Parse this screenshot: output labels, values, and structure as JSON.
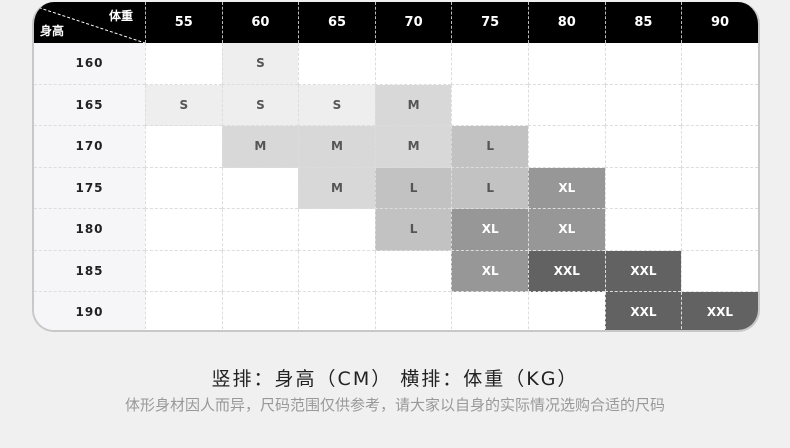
{
  "table": {
    "corner_weight": "体重",
    "corner_height": "身高",
    "weights": [
      "55",
      "60",
      "65",
      "70",
      "75",
      "80",
      "85",
      "90"
    ],
    "rows": [
      {
        "height": "160",
        "sizes": [
          "",
          "S",
          "",
          "",
          "",
          "",
          "",
          ""
        ]
      },
      {
        "height": "165",
        "sizes": [
          "S",
          "S",
          "S",
          "M",
          "",
          "",
          "",
          ""
        ]
      },
      {
        "height": "170",
        "sizes": [
          "",
          "M",
          "M",
          "M",
          "L",
          "",
          "",
          ""
        ]
      },
      {
        "height": "175",
        "sizes": [
          "",
          "",
          "M",
          "L",
          "L",
          "XL",
          "",
          ""
        ]
      },
      {
        "height": "180",
        "sizes": [
          "",
          "",
          "",
          "L",
          "XL",
          "XL",
          "",
          ""
        ]
      },
      {
        "height": "185",
        "sizes": [
          "",
          "",
          "",
          "",
          "XL",
          "XXL",
          "XXL",
          ""
        ]
      },
      {
        "height": "190",
        "sizes": [
          "",
          "",
          "",
          "",
          "",
          "",
          "XXL",
          "XXL"
        ]
      }
    ],
    "size_colors": {
      "S": "#eeeeee",
      "M": "#d8d8d8",
      "L": "#c2c2c2",
      "XL": "#979797",
      "XXL": "#626262"
    }
  },
  "footer": {
    "axis_note": "竖排：身高（CM）   横排：体重（KG）",
    "disclaimer": "体形身材因人而异，尺码范围仅供参考，请大家以自身的实际情况选购合适的尺码"
  }
}
